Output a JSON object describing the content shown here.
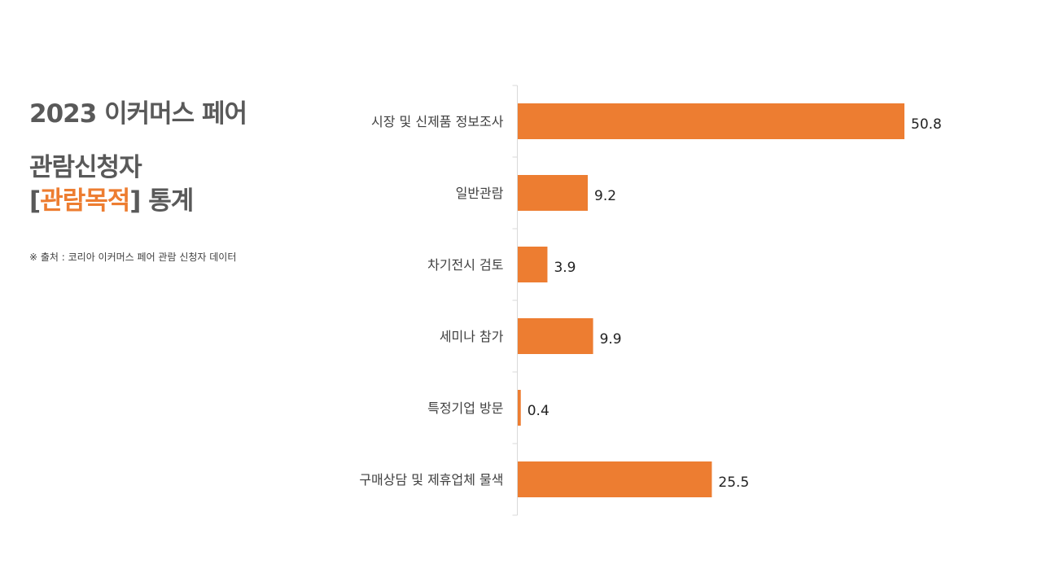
{
  "heading": {
    "title": "2023 이커머스 페어",
    "subtitle_line1": "관람신청자",
    "bracket_open": "[",
    "subtitle_highlight": "관람목적",
    "bracket_close": "]",
    "subtitle_suffix": " 통계",
    "source": "※ 출처 : 코리아 이커머스 페어 관람 신청자 데이터"
  },
  "colors": {
    "bar": "#ED7D31",
    "text": "#595959",
    "accent": "#ED7D31"
  },
  "chart_data": {
    "type": "bar",
    "orientation": "horizontal",
    "categories": [
      "시장 및 신제품 정보조사",
      "일반관람",
      "차기전시 검토",
      "세미나 참가",
      "특정기업 방문",
      "구매상담 및 제휴업체 물색"
    ],
    "values": [
      50.8,
      9.2,
      3.9,
      9.9,
      0.4,
      25.5
    ],
    "data_labels": [
      "50.8",
      "9.2",
      "3.9",
      "9.9",
      "0.4",
      "25.5"
    ],
    "xlim": [
      0,
      50.8
    ],
    "grid": false,
    "legend": "none"
  }
}
